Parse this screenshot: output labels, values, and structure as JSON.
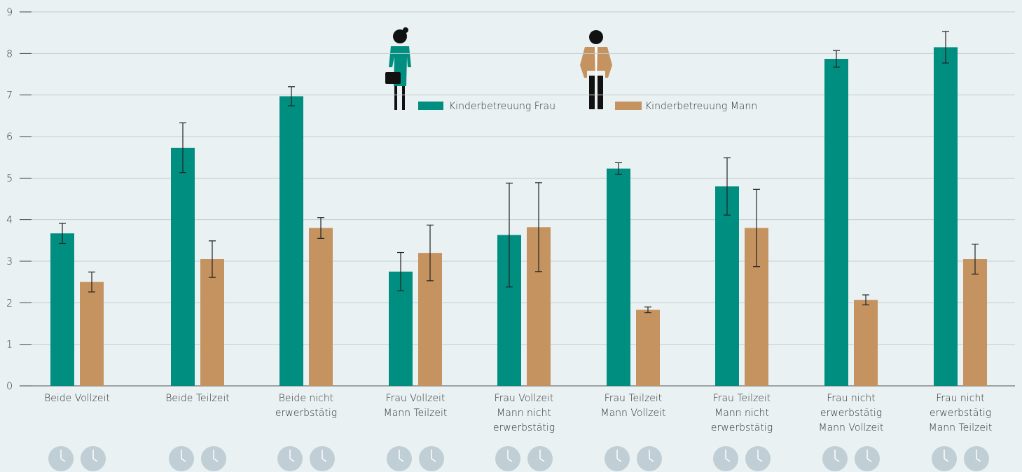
{
  "chart_data": {
    "type": "bar",
    "categories": [
      "Beide Vollzeit",
      "Beide Teilzeit",
      "Beide nicht\nerwerbstätig",
      "Frau Vollzeit\nMann Teilzeit",
      "Frau Vollzeit\nMann nicht\nerwerbstätig",
      "Frau Teilzeit\nMann Vollzeit",
      "Frau Teilzeit\nMann nicht\nerwerbstätig",
      "Frau nicht\nerwerbstätig\nMann Vollzeit",
      "Frau nicht\nerwerbstätig\nMann Teilzeit"
    ],
    "series": [
      {
        "name": "Kinderbetreuung Frau",
        "color": "#008e80",
        "values": [
          3.67,
          5.73,
          6.97,
          2.75,
          3.63,
          5.23,
          4.8,
          7.87,
          8.15
        ],
        "errors": [
          0.24,
          0.6,
          0.23,
          0.46,
          1.25,
          0.14,
          0.69,
          0.2,
          0.38
        ]
      },
      {
        "name": "Kinderbetreuung Mann",
        "color": "#c4935f",
        "values": [
          2.5,
          3.05,
          3.8,
          3.2,
          3.82,
          1.83,
          3.8,
          2.07,
          3.05
        ],
        "errors": [
          0.24,
          0.44,
          0.25,
          0.67,
          1.07,
          0.07,
          0.93,
          0.12,
          0.36
        ]
      }
    ],
    "ylim": [
      0,
      9
    ],
    "yticks": [
      0,
      1,
      2,
      3,
      4,
      5,
      6,
      7,
      8,
      9
    ],
    "grid": true
  }
}
